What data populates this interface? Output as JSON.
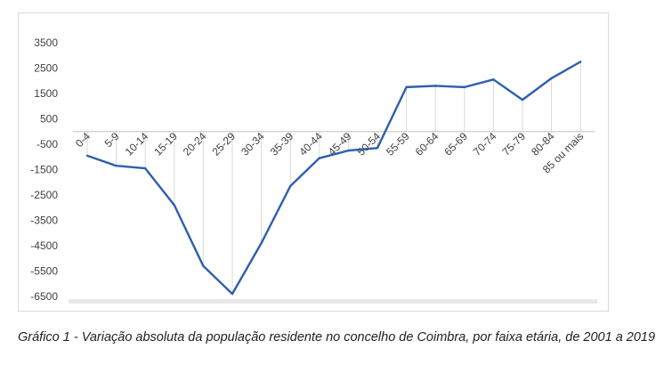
{
  "caption": "Gráfico 1 - Variação absoluta da população residente no concelho de Coimbra, por faixa etária, de 2001 a 2019",
  "chart_data": {
    "type": "line",
    "title": "",
    "xlabel": "",
    "ylabel": "",
    "categories": [
      "0-4",
      "5-9",
      "10-14",
      "15-19",
      "20-24",
      "25-29",
      "30-34",
      "35-39",
      "40-44",
      "45-49",
      "50-54",
      "55-59",
      "60-64",
      "65-69",
      "70-74",
      "75-79",
      "80-84",
      "85 ou mais"
    ],
    "series": [
      {
        "values": [
          -950,
          -1350,
          -1450,
          -2900,
          -5300,
          -6400,
          -4400,
          -2150,
          -1050,
          -750,
          -650,
          1750,
          1800,
          1750,
          2050,
          1250,
          2100,
          2750
        ]
      }
    ],
    "yticks": [
      3500,
      2500,
      1500,
      500,
      -500,
      -1500,
      -2500,
      -3500,
      -4500,
      -5500,
      -6500
    ],
    "ytick_labels": [
      "3500",
      "2500",
      "1500",
      "500",
      "-500",
      "-1500",
      "-2500",
      "-3500",
      "-4500",
      "-5500",
      "-6500"
    ],
    "ylim": [
      -6500,
      3500
    ],
    "line_color": "#2e5fad",
    "grid": "vertical"
  }
}
